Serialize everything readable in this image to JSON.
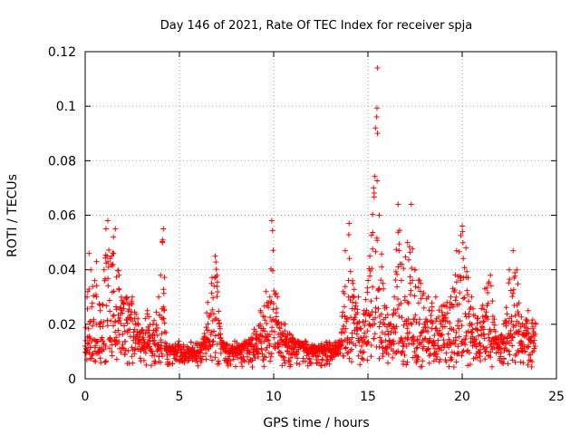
{
  "chart_data": {
    "type": "scatter",
    "title": "Day 146 of 2021, Rate Of TEC Index for receiver spja",
    "xlabel": "GPS time / hours",
    "ylabel": "ROTI / TECUs",
    "xlim": [
      0,
      25
    ],
    "ylim": [
      0,
      0.12
    ],
    "xticks": [
      0,
      5,
      10,
      15,
      20,
      25
    ],
    "yticks": [
      0,
      0.02,
      0.04,
      0.06,
      0.08,
      0.1,
      0.12
    ],
    "xtick_labels": [
      "0",
      "5",
      "10",
      "15",
      "20",
      "25"
    ],
    "ytick_labels": [
      "0",
      "0.02",
      "0.04",
      "0.06",
      "0.08",
      "0.1",
      "0.12"
    ],
    "grid": true,
    "marker": "+",
    "color": "#ff0000",
    "series": [
      {
        "name": "ROTI",
        "description_envelope_points": [
          [
            0.0,
            0.012
          ],
          [
            0.1,
            0.03
          ],
          [
            0.2,
            0.046
          ],
          [
            0.3,
            0.04
          ],
          [
            0.5,
            0.036
          ],
          [
            0.6,
            0.043
          ],
          [
            0.8,
            0.025
          ],
          [
            1.0,
            0.04
          ],
          [
            1.1,
            0.055
          ],
          [
            1.2,
            0.058
          ],
          [
            1.4,
            0.045
          ],
          [
            1.5,
            0.052
          ],
          [
            1.6,
            0.055
          ],
          [
            1.8,
            0.038
          ],
          [
            2.0,
            0.028
          ],
          [
            2.2,
            0.03
          ],
          [
            2.5,
            0.03
          ],
          [
            2.8,
            0.022
          ],
          [
            3.0,
            0.018
          ],
          [
            3.3,
            0.025
          ],
          [
            3.6,
            0.02
          ],
          [
            3.9,
            0.03
          ],
          [
            4.0,
            0.038
          ],
          [
            4.1,
            0.05
          ],
          [
            4.15,
            0.055
          ],
          [
            4.3,
            0.012
          ],
          [
            4.8,
            0.01
          ],
          [
            5.3,
            0.009
          ],
          [
            5.8,
            0.01
          ],
          [
            6.2,
            0.012
          ],
          [
            6.5,
            0.028
          ],
          [
            6.7,
            0.035
          ],
          [
            6.9,
            0.045
          ],
          [
            7.0,
            0.038
          ],
          [
            7.2,
            0.015
          ],
          [
            7.6,
            0.01
          ],
          [
            8.2,
            0.012
          ],
          [
            8.8,
            0.015
          ],
          [
            9.3,
            0.025
          ],
          [
            9.6,
            0.032
          ],
          [
            9.8,
            0.03
          ],
          [
            9.9,
            0.058
          ],
          [
            10.2,
            0.03
          ],
          [
            10.6,
            0.02
          ],
          [
            11.0,
            0.015
          ],
          [
            11.5,
            0.013
          ],
          [
            12.0,
            0.011
          ],
          [
            12.5,
            0.012
          ],
          [
            13.0,
            0.011
          ],
          [
            13.5,
            0.013
          ],
          [
            13.8,
            0.047
          ],
          [
            14.0,
            0.057
          ],
          [
            14.2,
            0.035
          ],
          [
            14.5,
            0.03
          ],
          [
            14.8,
            0.025
          ],
          [
            15.1,
            0.045
          ],
          [
            15.3,
            0.07
          ],
          [
            15.4,
            0.092
          ],
          [
            15.5,
            0.114
          ],
          [
            15.6,
            0.06
          ],
          [
            15.8,
            0.035
          ],
          [
            16.1,
            0.02
          ],
          [
            16.4,
            0.03
          ],
          [
            16.6,
            0.064
          ],
          [
            16.8,
            0.042
          ],
          [
            17.1,
            0.05
          ],
          [
            17.3,
            0.064
          ],
          [
            17.5,
            0.04
          ],
          [
            17.8,
            0.035
          ],
          [
            18.2,
            0.03
          ],
          [
            18.6,
            0.03
          ],
          [
            19.0,
            0.027
          ],
          [
            19.4,
            0.03
          ],
          [
            19.7,
            0.047
          ],
          [
            20.0,
            0.056
          ],
          [
            20.2,
            0.048
          ],
          [
            20.5,
            0.03
          ],
          [
            20.8,
            0.022
          ],
          [
            21.2,
            0.033
          ],
          [
            21.5,
            0.038
          ],
          [
            21.8,
            0.015
          ],
          [
            22.2,
            0.02
          ],
          [
            22.5,
            0.04
          ],
          [
            22.7,
            0.047
          ],
          [
            22.9,
            0.04
          ],
          [
            23.2,
            0.02
          ],
          [
            23.5,
            0.025
          ],
          [
            23.9,
            0.02
          ]
        ]
      }
    ]
  }
}
